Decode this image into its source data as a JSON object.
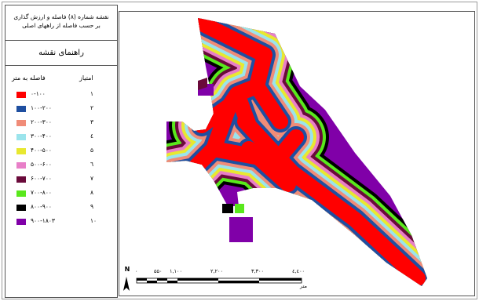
{
  "title": {
    "line1": "نقشه شماره (۸) فاصله و ارزش گذاری",
    "line2": "بر حسب فاصله از راههای اصلی"
  },
  "legend": {
    "heading": "راهنمای نقشه",
    "col_score": "امتیاز",
    "col_distance": "فاصله به متر",
    "items": [
      {
        "range": "۰-۱۰۰",
        "score": "۱",
        "color": "#ff0000"
      },
      {
        "range": "۱۰۰-۲۰۰",
        "score": "۲",
        "color": "#1f4fa0"
      },
      {
        "range": "۲۰۰-۳۰۰",
        "score": "۳",
        "color": "#f08c78"
      },
      {
        "range": "۳۰۰-۴۰۰",
        "score": "٤",
        "color": "#9be4ec"
      },
      {
        "range": "۴۰۰-۵۰۰",
        "score": "۵",
        "color": "#e8e830"
      },
      {
        "range": "۵۰۰-۶۰۰",
        "score": "٦",
        "color": "#e87fc8"
      },
      {
        "range": "۶۰۰-۷۰۰",
        "score": "۷",
        "color": "#6a0a3a"
      },
      {
        "range": "۷۰۰-۸۰۰",
        "score": "۸",
        "color": "#59e81c"
      },
      {
        "range": "۸۰۰-۹۰۰",
        "score": "۹",
        "color": "#000000"
      },
      {
        "range": "۹۰۰-۱۸۰۳",
        "score": "۱۰",
        "color": "#8000a8"
      }
    ]
  },
  "map": {
    "north": "N",
    "scale_ticks": [
      "۰",
      "۵۵۰",
      "۱,۱۰۰",
      "۲,۲۰۰",
      "۳,۳۰۰",
      "٤,٤۰۰"
    ],
    "unit": "متر"
  }
}
